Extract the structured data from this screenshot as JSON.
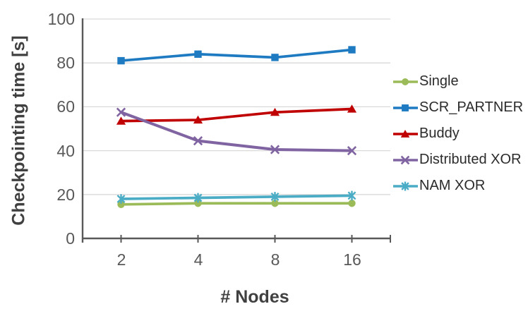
{
  "chart_data": {
    "type": "line",
    "title": "",
    "xlabel": "# Nodes",
    "ylabel": "Checkpointing time [s]",
    "x_categories": [
      "2",
      "4",
      "8",
      "16"
    ],
    "yticks": [
      "0",
      "20",
      "40",
      "60",
      "80",
      "100"
    ],
    "ylim": [
      0,
      100
    ],
    "grid": "horizontal",
    "legend_position": "right",
    "series": [
      {
        "name": "Single",
        "color": "#9BBB59",
        "marker": "circle",
        "values": [
          15.5,
          16,
          16,
          16
        ]
      },
      {
        "name": "SCR_PARTNER",
        "color": "#1E7AC1",
        "marker": "square",
        "values": [
          81,
          84,
          82.5,
          86
        ]
      },
      {
        "name": "Buddy",
        "color": "#C00000",
        "marker": "triangle",
        "values": [
          53.5,
          54,
          57.5,
          59
        ]
      },
      {
        "name": "Distributed XOR",
        "color": "#8064A2",
        "marker": "x",
        "values": [
          57.5,
          44.5,
          40.5,
          40
        ]
      },
      {
        "name": "NAM XOR",
        "color": "#4BACC6",
        "marker": "asterisk",
        "values": [
          18,
          18.5,
          19,
          19.5
        ]
      }
    ]
  },
  "colors": {
    "axis": "#595959",
    "grid": "#D9D9D9",
    "tick_label": "#595959",
    "axis_title": "#404040",
    "legend_text": "#2B2B2B",
    "background": "#FFFFFF"
  }
}
